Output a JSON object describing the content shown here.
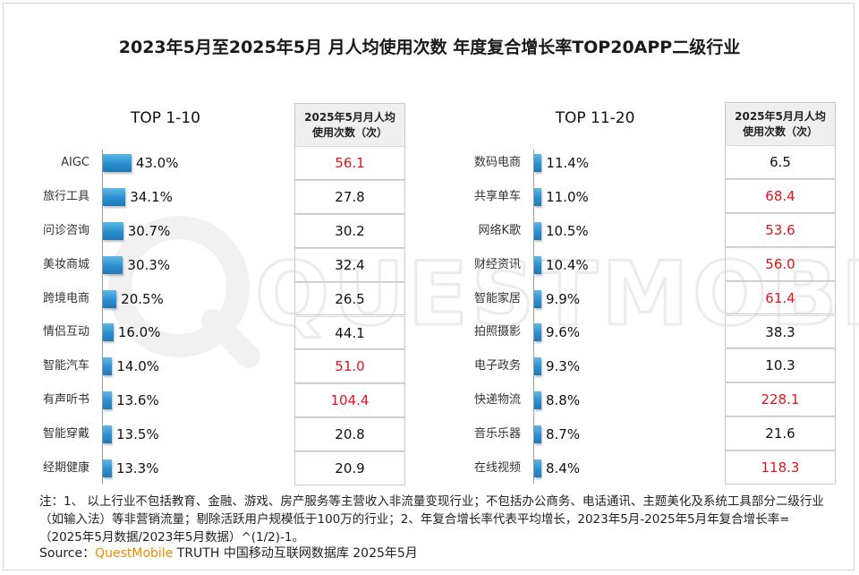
{
  "title": "2023年5月至2025年5月 月人均使用次数 年度复合增长率TOP20APP二级行业",
  "watermark": "QUESTMOBILE",
  "column_header_line1": "2025年5月月人均",
  "column_header_line2": "使用次数（次）",
  "colors": {
    "bar": "#2a8fd0",
    "highlight": "#e0141e",
    "text": "#111111",
    "brand": "#f08a00"
  },
  "chart_data": [
    {
      "type": "bar",
      "title": "TOP 1-10",
      "categories": [
        "AIGC",
        "旅行工具",
        "问诊咨询",
        "美妆商城",
        "跨境电商",
        "情侣互动",
        "智能汽车",
        "有声听书",
        "智能穿戴",
        "经期健康"
      ],
      "values": [
        43.0,
        34.1,
        30.7,
        30.3,
        20.5,
        16.0,
        14.0,
        13.6,
        13.5,
        13.3
      ],
      "value_labels": [
        "43.0%",
        "34.1%",
        "30.7%",
        "30.3%",
        "20.5%",
        "16.0%",
        "14.0%",
        "13.6%",
        "13.5%",
        "13.3%"
      ],
      "table_values": [
        "56.1",
        "27.8",
        "30.2",
        "32.4",
        "26.5",
        "44.1",
        "51.0",
        "104.4",
        "20.8",
        "20.9"
      ],
      "table_highlight": [
        true,
        false,
        false,
        false,
        false,
        false,
        true,
        true,
        false,
        false
      ]
    },
    {
      "type": "bar",
      "title": "TOP 11-20",
      "categories": [
        "数码电商",
        "共享单车",
        "网络K歌",
        "财经资讯",
        "智能家居",
        "拍照摄影",
        "电子政务",
        "快递物流",
        "音乐乐器",
        "在线视频"
      ],
      "values": [
        11.4,
        11.0,
        10.5,
        10.4,
        9.9,
        9.6,
        9.3,
        8.8,
        8.7,
        8.4
      ],
      "value_labels": [
        "11.4%",
        "11.0%",
        "10.5%",
        "10.4%",
        "9.9%",
        "9.6%",
        "9.3%",
        "8.8%",
        "8.7%",
        "8.4%"
      ],
      "table_values": [
        "6.5",
        "68.4",
        "53.6",
        "56.0",
        "61.4",
        "38.3",
        "10.3",
        "228.1",
        "21.6",
        "118.3"
      ],
      "table_highlight": [
        false,
        true,
        true,
        true,
        true,
        false,
        false,
        true,
        false,
        true
      ]
    }
  ],
  "note": "注：1、 以上行业不包括教育、金融、游戏、房产服务等主营收入非流量变现行业；不包括办公商务、电话通讯、主题美化及系统工具部分二级行业（如输入法）等非营销流量；剔除活跃用户规模低于100万的行业；2、年复合增长率代表平均增长，2023年5月-2025年5月年复合增长率=（2025年5月数据/2023年5月数据）^(1/2)-1。",
  "source_label": "Source：",
  "source_brand": "QuestMobile",
  "source_rest": " TRUTH 中国移动互联网数据库 2025年5月"
}
